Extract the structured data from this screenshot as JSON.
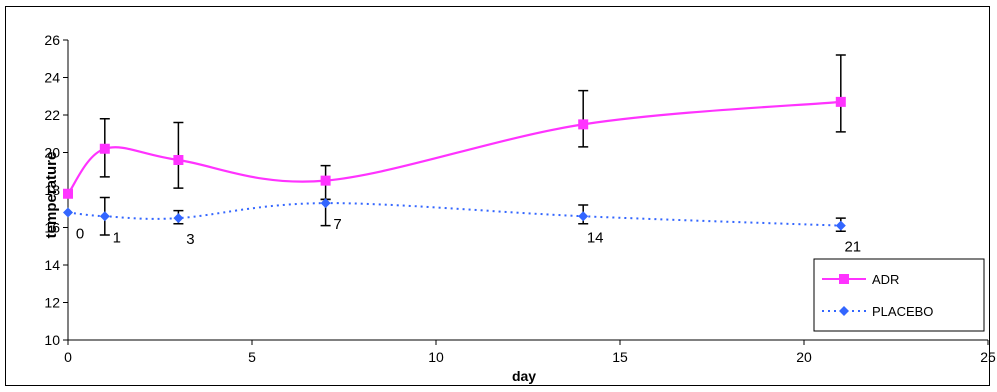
{
  "chart_data": {
    "type": "line",
    "xlabel": "day",
    "ylabel": "temperature",
    "xlim": [
      0,
      25
    ],
    "ylim": [
      10,
      26
    ],
    "x_ticks": [
      "0",
      "5",
      "10",
      "15",
      "20",
      "25"
    ],
    "y_ticks": [
      "10",
      "12",
      "14",
      "16",
      "18",
      "20",
      "22",
      "24",
      "26"
    ],
    "grid": false,
    "legend_position": "bottom-right",
    "point_labels": [
      {
        "x": 0,
        "text": "0"
      },
      {
        "x": 1,
        "text": "1"
      },
      {
        "x": 3,
        "text": "3"
      },
      {
        "x": 7,
        "text": "7"
      },
      {
        "x": 14,
        "text": "14"
      },
      {
        "x": 21,
        "text": "21"
      }
    ],
    "series": [
      {
        "name": "ADR",
        "color": "#ff33ff",
        "marker": "square",
        "line_style": "solid",
        "x": [
          0,
          1,
          3,
          7,
          14,
          21
        ],
        "y": [
          17.8,
          20.2,
          19.6,
          18.5,
          21.5,
          22.7
        ],
        "err_low": [
          null,
          18.7,
          18.1,
          17.5,
          20.3,
          21.1
        ],
        "err_high": [
          null,
          21.8,
          21.6,
          19.3,
          23.3,
          25.2
        ]
      },
      {
        "name": "PLACEBO",
        "color": "#3366ff",
        "marker": "diamond",
        "line_style": "dotted",
        "x": [
          0,
          1,
          3,
          7,
          14,
          21
        ],
        "y": [
          16.8,
          16.6,
          16.5,
          17.3,
          16.6,
          16.1
        ],
        "err_low": [
          null,
          15.6,
          16.2,
          16.1,
          16.2,
          15.8
        ],
        "err_high": [
          null,
          17.6,
          16.9,
          17.5,
          17.2,
          16.5
        ]
      }
    ]
  }
}
